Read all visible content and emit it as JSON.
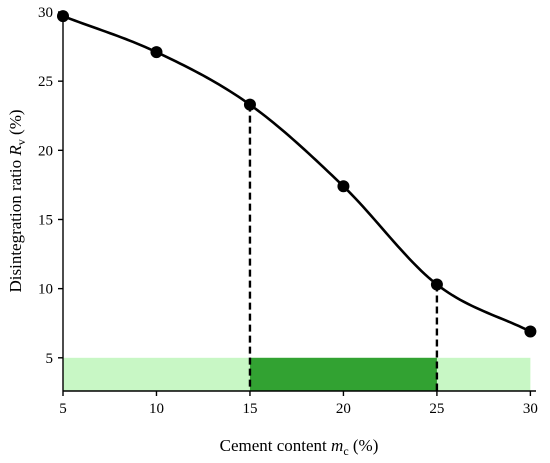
{
  "chart_data": {
    "type": "line",
    "xlabel": {
      "prefix": "Cement content ",
      "symbol": "m",
      "sub": "c",
      "suffix": " (%)"
    },
    "ylabel": {
      "prefix": "Disintegration ratio ",
      "symbol": "R",
      "sub": "v",
      "suffix": " (%)"
    },
    "xlim": [
      5,
      30.3
    ],
    "ylim": [
      2.6,
      30
    ],
    "xticks": [
      5,
      10,
      15,
      20,
      25,
      30
    ],
    "yticks": [
      5,
      10,
      15,
      20,
      25,
      30
    ],
    "grid": false,
    "legend": "none",
    "series": [
      {
        "x": [
          5,
          10,
          15,
          20,
          25,
          30
        ],
        "y": [
          29.7,
          27.1,
          23.3,
          17.4,
          10.3,
          6.9
        ],
        "color": "#000000",
        "marker": "circle",
        "curve": "smooth"
      }
    ],
    "guides": [
      {
        "x": 15,
        "y": 23.3,
        "style": "dashed"
      },
      {
        "x": 25,
        "y": 10.3,
        "style": "dashed"
      }
    ],
    "bands": [
      {
        "x0": 5,
        "x1": 30,
        "y0": 2.6,
        "y1": 5,
        "color": "#c8f7c5"
      },
      {
        "x0": 15,
        "x1": 25,
        "y0": 2.6,
        "y1": 5,
        "color": "#32a232"
      }
    ]
  }
}
